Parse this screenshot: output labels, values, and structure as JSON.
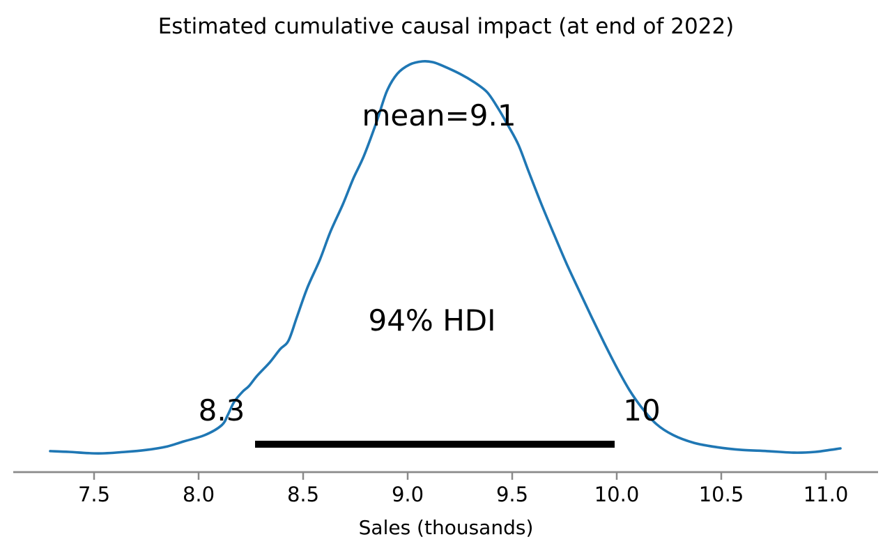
{
  "figure": {
    "title": "Estimated cumulative causal impact (at end of 2022)",
    "xlabel": "Sales (thousands)",
    "background": "#ffffff"
  },
  "annotations": {
    "mean_label": "mean=9.1",
    "hdi_label": "94% HDI",
    "hdi_low_label": "8.3",
    "hdi_high_label": "10"
  },
  "chart_data": {
    "type": "line",
    "subtype": "posterior-kde",
    "title": "Estimated cumulative causal impact (at end of 2022)",
    "xlabel": "Sales (thousands)",
    "ylabel": "",
    "grid": false,
    "legend": false,
    "x_tick_labels": [
      "7.5",
      "8.0",
      "8.5",
      "9.0",
      "9.5",
      "10.0",
      "10.5",
      "11.0"
    ],
    "xlim": [
      7.11,
      11.25
    ],
    "stats": {
      "mean": 9.1,
      "hdi_prob": 0.94,
      "hdi_lower": 8.3,
      "hdi_upper": 10.0
    },
    "hdi_bar": {
      "from": 8.27,
      "to": 9.99
    },
    "series": [
      {
        "name": "posterior density",
        "x": [
          7.29,
          7.38,
          7.52,
          7.65,
          7.75,
          7.85,
          7.93,
          8.03,
          8.11,
          8.14,
          8.17,
          8.21,
          8.24,
          8.28,
          8.34,
          8.39,
          8.43,
          8.47,
          8.52,
          8.58,
          8.63,
          8.69,
          8.74,
          8.79,
          8.85,
          8.9,
          8.95,
          9.01,
          9.07,
          9.12,
          9.17,
          9.25,
          9.32,
          9.38,
          9.43,
          9.48,
          9.53,
          9.58,
          9.64,
          9.7,
          9.76,
          9.82,
          9.88,
          9.94,
          10.0,
          10.06,
          10.12,
          10.19,
          10.27,
          10.37,
          10.48,
          10.6,
          10.72,
          10.85,
          10.95,
          11.02,
          11.07
        ],
        "density": [
          0.002,
          0.0,
          -0.004,
          0.0,
          0.005,
          0.014,
          0.027,
          0.043,
          0.068,
          0.095,
          0.128,
          0.154,
          0.168,
          0.195,
          0.229,
          0.263,
          0.285,
          0.345,
          0.42,
          0.492,
          0.563,
          0.634,
          0.7,
          0.757,
          0.843,
          0.923,
          0.968,
          0.992,
          1.0,
          0.998,
          0.988,
          0.968,
          0.946,
          0.921,
          0.882,
          0.836,
          0.786,
          0.716,
          0.634,
          0.557,
          0.482,
          0.413,
          0.345,
          0.279,
          0.216,
          0.159,
          0.113,
          0.071,
          0.043,
          0.023,
          0.012,
          0.005,
          0.002,
          -0.002,
          0.0,
          0.005,
          0.009
        ]
      }
    ],
    "colors": {
      "curve": "#1f77b4",
      "hdi_bar": "#000000",
      "axis": "#8a8a8a",
      "text": "#000000"
    }
  }
}
